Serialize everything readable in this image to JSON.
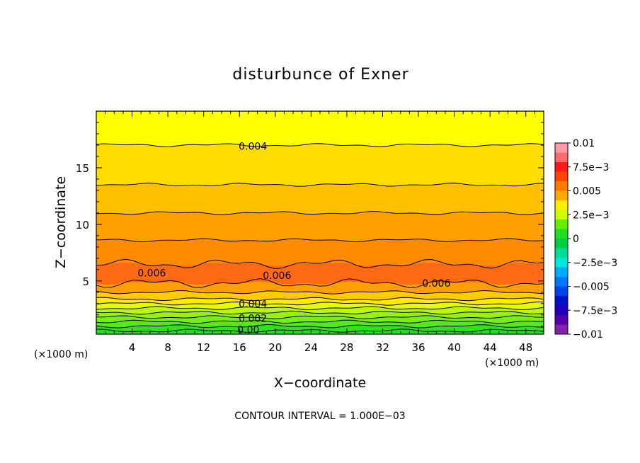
{
  "chart_data": {
    "type": "contour",
    "title": "disturbunce of Exner",
    "xlabel": "X−coordinate",
    "ylabel": "Z−coordinate",
    "x_unit": "(×1000 m)",
    "x_unit_right": "(×1000 m)",
    "footer": "CONTOUR INTERVAL = 1.000E−03",
    "xlim": [
      0,
      50
    ],
    "ylim": [
      0.3,
      20
    ],
    "x_ticks": [
      4,
      8,
      12,
      16,
      20,
      24,
      28,
      32,
      36,
      40,
      44,
      48
    ],
    "y_ticks": [
      5,
      10,
      15
    ],
    "contour_interval": 0.001,
    "contour_labels": [
      {
        "text": "0.004",
        "x": 17.5,
        "z": 16.9
      },
      {
        "text": "0.006",
        "x": 6.2,
        "z": 5.7
      },
      {
        "text": "0.006",
        "x": 20.2,
        "z": 5.5
      },
      {
        "text": "0.006",
        "x": 38.0,
        "z": 4.8
      },
      {
        "text": "0.004",
        "x": 17.5,
        "z": 3.0
      },
      {
        "text": "0.002",
        "x": 17.5,
        "z": 1.7
      },
      {
        "text": "0.00",
        "x": 17.0,
        "z": 0.7
      }
    ],
    "bands": [
      {
        "from": 0.3,
        "to": 0.6,
        "value": 0.0,
        "color": "#22dd22"
      },
      {
        "from": 0.6,
        "to": 1.0,
        "value": 0.0005,
        "color": "#33e020"
      },
      {
        "from": 1.0,
        "to": 1.4,
        "value": 0.001,
        "color": "#55e81a"
      },
      {
        "from": 1.4,
        "to": 1.8,
        "value": 0.0015,
        "color": "#77ee14"
      },
      {
        "from": 1.8,
        "to": 2.2,
        "value": 0.002,
        "color": "#99f20e"
      },
      {
        "from": 2.2,
        "to": 2.6,
        "value": 0.0025,
        "color": "#bbf70a"
      },
      {
        "from": 2.6,
        "to": 3.0,
        "value": 0.003,
        "color": "#e6fa00"
      },
      {
        "from": 3.0,
        "to": 3.4,
        "value": 0.0035,
        "color": "#ffea00"
      },
      {
        "from": 3.4,
        "to": 4.0,
        "value": 0.004,
        "color": "#ffcc00"
      },
      {
        "from": 4.0,
        "to": 4.8,
        "value": 0.0045,
        "color": "#ff9f00"
      },
      {
        "from": 4.8,
        "to": 6.5,
        "value": 0.006,
        "color": "#ff6a12"
      },
      {
        "from": 6.5,
        "to": 8.6,
        "value": 0.0055,
        "color": "#ff8c00"
      },
      {
        "from": 8.6,
        "to": 11.0,
        "value": 0.005,
        "color": "#ff9f00"
      },
      {
        "from": 11.0,
        "to": 13.5,
        "value": 0.0045,
        "color": "#ffc000"
      },
      {
        "from": 13.5,
        "to": 17.0,
        "value": 0.004,
        "color": "#ffdd00"
      },
      {
        "from": 17.0,
        "to": 20.0,
        "value": 0.0035,
        "color": "#ffff00"
      }
    ],
    "colorbar": {
      "min": -0.01,
      "max": 0.01,
      "tick_labels": [
        "0.01",
        "7.5e−3",
        "0.005",
        "2.5e−3",
        "0",
        "−2.5e−3",
        "−0.005",
        "−7.5e−3",
        "−0.01"
      ],
      "tick_values": [
        0.01,
        0.0075,
        0.005,
        0.0025,
        0,
        -0.0025,
        -0.005,
        -0.0075,
        -0.01
      ],
      "colors_top_to_bottom": [
        "#ff9aa8",
        "#ff6a6a",
        "#ff1a1a",
        "#ff4400",
        "#ff7a00",
        "#ffaa00",
        "#ffee00",
        "#ccff00",
        "#66ee00",
        "#22dd22",
        "#00cc44",
        "#00dd99",
        "#00e5dd",
        "#00aaff",
        "#0077ff",
        "#0044ee",
        "#0011cc",
        "#2200bb",
        "#5500aa",
        "#8822aa"
      ]
    }
  }
}
